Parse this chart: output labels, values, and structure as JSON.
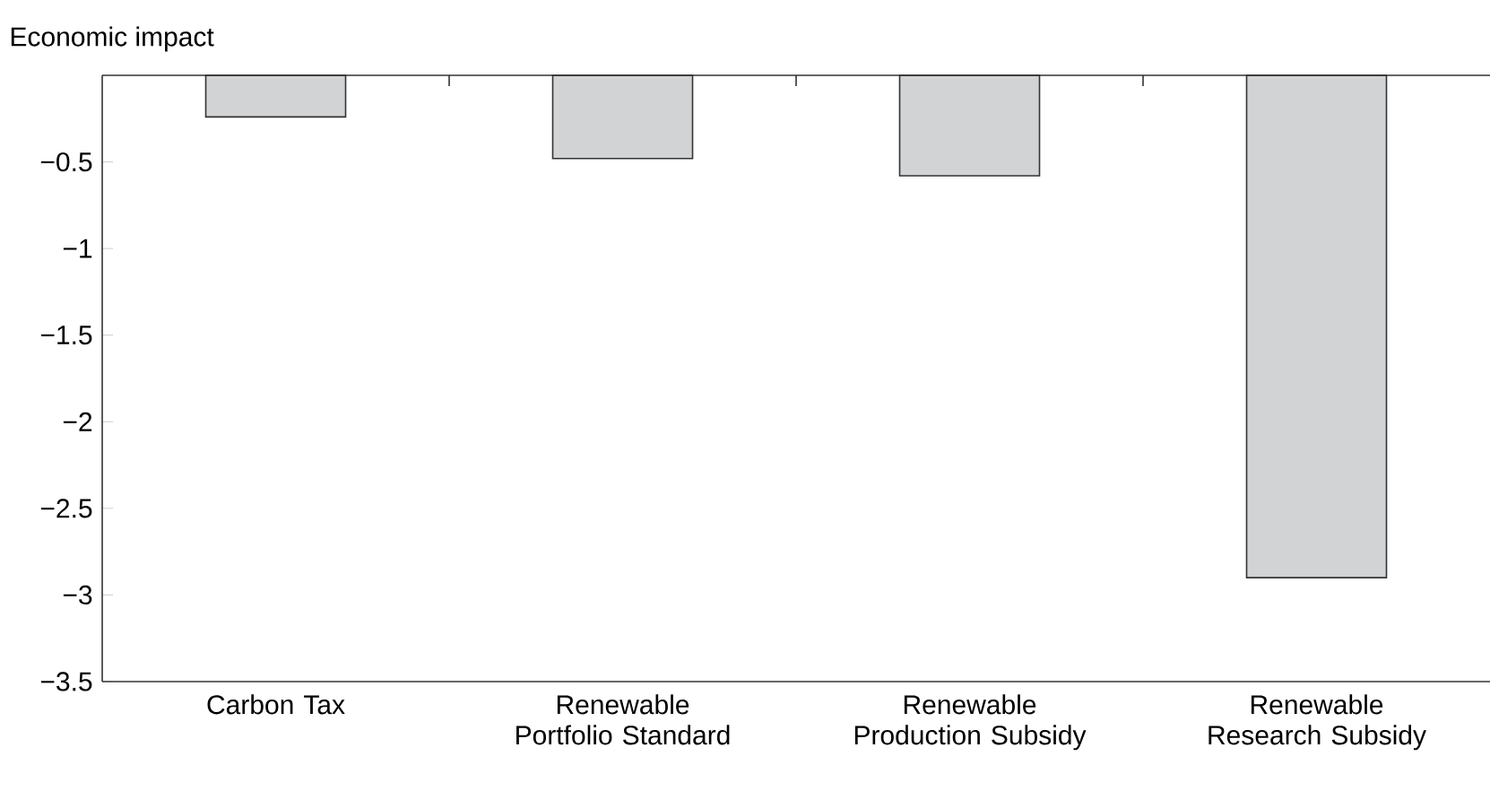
{
  "chart_data": {
    "type": "bar",
    "ylabel": "Economic impact",
    "categories": [
      "Carbon Tax",
      "Renewable Portfolio Standard",
      "Renewable Production Subsidy",
      "Renewable Research Subsidy"
    ],
    "values": [
      -0.24,
      -0.48,
      -0.58,
      -2.9
    ],
    "color": "#d1d3d4",
    "ylim": [
      -3.5,
      0
    ],
    "yticks": [
      {
        "value": -3.5,
        "label": "−3.5"
      },
      {
        "value": -3,
        "label": "−3"
      },
      {
        "value": -2.5,
        "label": "−2.5"
      },
      {
        "value": -2,
        "label": "−2"
      },
      {
        "value": -1.5,
        "label": "−1.5"
      },
      {
        "value": -1,
        "label": "−1"
      },
      {
        "value": -0.5,
        "label": "−0.5"
      }
    ]
  }
}
